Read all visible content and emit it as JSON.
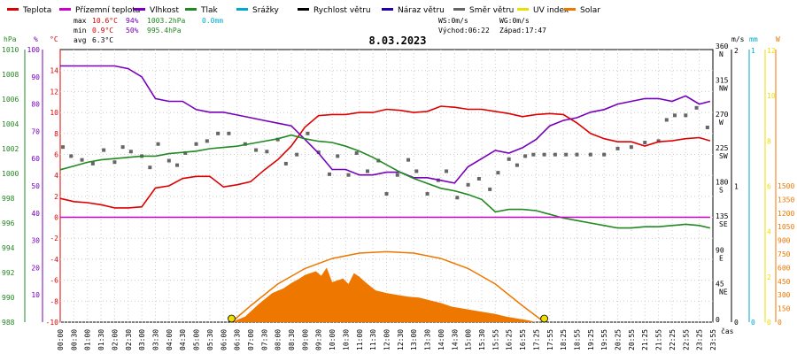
{
  "legend": [
    {
      "label": "Teplota",
      "color": "#dd0000"
    },
    {
      "label": "Přízemní teplota",
      "color": "#cc00cc"
    },
    {
      "label": "Vlhkost",
      "color": "#7700bb"
    },
    {
      "label": "Tlak",
      "color": "#228822"
    },
    {
      "label": "Srážky",
      "color": "#00aacc"
    },
    {
      "label": "Rychlost větru",
      "color": "#000000"
    },
    {
      "label": "Náraz větru",
      "color": "#2200aa"
    },
    {
      "label": "Směr větru",
      "color": "#666666"
    },
    {
      "label": "UV index",
      "color": "#eedd00"
    },
    {
      "label": "Solar",
      "color": "#ee7700"
    }
  ],
  "stats": {
    "max_label": "max",
    "max_temp": "10.6°C",
    "max_hum": "94%",
    "max_press": "1003.2hPa",
    "max_rain": "0.0mm",
    "min_label": "min",
    "min_temp": "0.9°C",
    "min_hum": "50%",
    "min_press": "995.4hPa",
    "avg_label": "avg",
    "avg_temp": "6.3°C"
  },
  "wind_info": {
    "ws": "WS:0m/s",
    "wg": "WG:0m/s",
    "sunrise": "Východ:06:22",
    "sunset": "Západ:17:47"
  },
  "date": "8.03.2023",
  "units": {
    "hpa": "hPa",
    "pct": "%",
    "degc": "°C",
    "ms": "m/s",
    "mm": "mm",
    "w": "W",
    "cas": "čas"
  },
  "chart_data": {
    "type": "line",
    "title": "8.03.2023",
    "xlabel": "čas",
    "x_ticks": [
      "00:00",
      "00:30",
      "01:00",
      "01:30",
      "02:00",
      "02:30",
      "03:00",
      "03:30",
      "04:00",
      "04:30",
      "05:00",
      "05:30",
      "06:00",
      "06:30",
      "07:00",
      "07:30",
      "08:00",
      "08:30",
      "09:00",
      "09:30",
      "10:00",
      "10:30",
      "11:00",
      "11:30",
      "12:00",
      "12:30",
      "13:00",
      "13:30",
      "14:00",
      "14:30",
      "15:00",
      "15:30",
      "15:55",
      "16:25",
      "16:55",
      "17:25",
      "17:55",
      "18:25",
      "18:55",
      "19:25",
      "19:55",
      "20:25",
      "20:55",
      "21:25",
      "21:55",
      "22:25",
      "22:55",
      "23:25",
      "23:55"
    ],
    "axes": {
      "pressure_hpa": {
        "min": 988,
        "max": 1010,
        "ticks": [
          988,
          990,
          992,
          994,
          996,
          998,
          1000,
          1002,
          1004,
          1006,
          1008,
          1010
        ]
      },
      "humidity_pct": {
        "min": 0,
        "max": 100,
        "ticks": [
          10,
          20,
          30,
          40,
          50,
          60,
          70,
          80,
          90,
          100
        ]
      },
      "temperature_c": {
        "min": -10,
        "max": 16,
        "ticks": [
          -10,
          -8,
          -6,
          -4,
          -2,
          0,
          2,
          4,
          6,
          8,
          10,
          12,
          14
        ]
      },
      "wind_ms": {
        "min": 0,
        "max": 2,
        "ticks": [
          0,
          1,
          2
        ]
      },
      "wind_dir": {
        "ticks": [
          {
            "v": 360,
            "l": "N"
          },
          {
            "v": 315,
            "l": "NW"
          },
          {
            "v": 270,
            "l": "W"
          },
          {
            "v": 225,
            "l": "SW"
          },
          {
            "v": 180,
            "l": "S"
          },
          {
            "v": 135,
            "l": "SE"
          },
          {
            "v": 90,
            "l": "E"
          },
          {
            "v": 45,
            "l": "NE"
          },
          {
            "v": 0,
            "l": ""
          }
        ]
      },
      "rain_mm": {
        "ticks": [
          0,
          1
        ]
      },
      "uv": {
        "ticks": [
          0,
          2,
          4,
          6,
          8,
          10,
          12
        ]
      },
      "solar_w": {
        "ticks": [
          0,
          150,
          300,
          450,
          600,
          750,
          900,
          1050,
          1200,
          1350,
          1500
        ]
      }
    },
    "series": [
      {
        "name": "Teplota",
        "axis": "temperature_c",
        "color": "#dd0000",
        "x": [
          0,
          0.5,
          1,
          1.5,
          2,
          2.5,
          3,
          3.5,
          4,
          4.5,
          5,
          5.5,
          6,
          6.5,
          7,
          7.5,
          8,
          8.5,
          9,
          9.5,
          10,
          10.5,
          11,
          11.5,
          12,
          12.5,
          13,
          13.5,
          14,
          14.5,
          15,
          15.5,
          16,
          16.5,
          17,
          17.5,
          18,
          18.5,
          19,
          19.5,
          20,
          20.5,
          21,
          21.5,
          22,
          22.5,
          23,
          23.5,
          23.9
        ],
        "values": [
          1.8,
          1.5,
          1.4,
          1.2,
          0.9,
          0.9,
          1.0,
          2.8,
          3.0,
          3.7,
          3.9,
          3.9,
          2.9,
          3.1,
          3.4,
          4.5,
          5.5,
          6.8,
          8.6,
          9.7,
          9.8,
          9.8,
          10.0,
          10.0,
          10.3,
          10.2,
          10.0,
          10.1,
          10.6,
          10.5,
          10.3,
          10.3,
          10.1,
          9.9,
          9.6,
          9.8,
          9.9,
          9.8,
          9.0,
          8.0,
          7.5,
          7.2,
          7.2,
          6.8,
          7.2,
          7.3,
          7.5,
          7.6,
          7.3
        ]
      },
      {
        "name": "Vlhkost",
        "axis": "humidity_pct",
        "color": "#7700bb",
        "x": [
          0,
          0.5,
          1,
          1.5,
          2,
          2.5,
          3,
          3.5,
          4,
          4.5,
          5,
          5.5,
          6,
          6.5,
          7,
          7.5,
          8,
          8.5,
          9,
          9.5,
          10,
          10.5,
          11,
          11.5,
          12,
          12.5,
          13,
          13.5,
          14,
          14.5,
          15,
          15.5,
          16,
          16.5,
          17,
          17.5,
          18,
          18.5,
          19,
          19.5,
          20,
          20.5,
          21,
          21.5,
          22,
          22.5,
          23,
          23.5,
          23.9
        ],
        "values": [
          94,
          94,
          94,
          94,
          94,
          93,
          90,
          82,
          81,
          81,
          78,
          77,
          77,
          76,
          75,
          74,
          73,
          72,
          67,
          62,
          56,
          56,
          54,
          54,
          55,
          55,
          53,
          53,
          52,
          51,
          57,
          60,
          63,
          62,
          64,
          67,
          72,
          74,
          75,
          77,
          78,
          80,
          81,
          82,
          82,
          81,
          83,
          80,
          81
        ]
      },
      {
        "name": "Tlak",
        "axis": "pressure_hpa",
        "color": "#228822",
        "x": [
          0,
          0.5,
          1,
          1.5,
          2,
          2.5,
          3,
          3.5,
          4,
          4.5,
          5,
          5.5,
          6,
          6.5,
          7,
          7.5,
          8,
          8.5,
          9,
          9.5,
          10,
          10.5,
          11,
          11.5,
          12,
          12.5,
          13,
          13.5,
          14,
          14.5,
          15,
          15.5,
          16,
          16.5,
          17,
          17.5,
          18,
          18.5,
          19,
          19.5,
          20,
          20.5,
          21,
          21.5,
          22,
          22.5,
          23,
          23.5,
          23.9
        ],
        "values": [
          1000.3,
          1000.6,
          1000.9,
          1001.1,
          1001.2,
          1001.3,
          1001.4,
          1001.4,
          1001.6,
          1001.7,
          1001.8,
          1002.0,
          1002.1,
          1002.2,
          1002.4,
          1002.6,
          1002.8,
          1003.1,
          1002.8,
          1002.6,
          1002.5,
          1002.2,
          1001.8,
          1001.3,
          1000.7,
          1000.1,
          999.6,
          999.2,
          998.8,
          998.6,
          998.3,
          997.9,
          996.9,
          997.1,
          997.1,
          997.0,
          996.7,
          996.4,
          996.2,
          996.0,
          995.8,
          995.6,
          995.6,
          995.7,
          995.7,
          995.8,
          995.9,
          995.8,
          995.6
        ]
      },
      {
        "name": "Přízemní teplota",
        "axis": "temperature_c",
        "color": "#cc00cc",
        "x": [
          0,
          23.9
        ],
        "values": [
          0,
          0
        ]
      },
      {
        "name": "Směr větru",
        "axis": "wind_dir",
        "color": "#666666",
        "type": "scatter",
        "x": [
          0.1,
          0.4,
          0.8,
          1.2,
          1.6,
          2.0,
          2.3,
          2.6,
          3.0,
          3.3,
          3.6,
          4.0,
          4.3,
          4.6,
          5.0,
          5.4,
          5.8,
          6.2,
          6.8,
          7.2,
          7.6,
          8.0,
          8.3,
          8.7,
          9.1,
          9.5,
          9.9,
          10.2,
          10.6,
          10.9,
          11.3,
          11.7,
          12.0,
          12.4,
          12.8,
          13.1,
          13.5,
          13.9,
          14.2,
          14.6,
          15.0,
          15.4,
          15.8,
          16.1,
          16.5,
          16.8,
          17.1,
          17.4,
          17.8,
          18.2,
          18.6,
          19.0,
          19.5,
          20.0,
          20.5,
          21.0,
          21.5,
          22.0,
          22.3,
          22.6,
          23.0,
          23.4,
          23.8
        ],
        "values": [
          232,
          220,
          215,
          210,
          228,
          212,
          232,
          226,
          220,
          205,
          236,
          214,
          208,
          224,
          236,
          240,
          250,
          250,
          236,
          228,
          226,
          242,
          210,
          222,
          250,
          225,
          196,
          220,
          195,
          224,
          200,
          214,
          170,
          195,
          215,
          200,
          170,
          188,
          200,
          165,
          182,
          190,
          176,
          198,
          216,
          208,
          220,
          222,
          222,
          222,
          222,
          222,
          222,
          222,
          230,
          232,
          238,
          240,
          268,
          274,
          274,
          284,
          258
        ]
      },
      {
        "name": "Solar",
        "axis": "solar_w",
        "color": "#ee7700",
        "type": "area",
        "x": [
          6.3,
          6.8,
          7.3,
          7.8,
          8.2,
          8.5,
          8.8,
          9.0,
          9.2,
          9.4,
          9.6,
          9.8,
          10.0,
          10.2,
          10.4,
          10.6,
          10.8,
          11.0,
          11.3,
          11.6,
          12.0,
          12.4,
          12.8,
          13.2,
          13.6,
          14.0,
          14.4,
          14.8,
          15.2,
          15.6,
          16.0,
          16.4,
          16.8,
          17.2,
          17.5
        ],
        "values": [
          0,
          60,
          200,
          320,
          370,
          430,
          480,
          520,
          540,
          560,
          510,
          600,
          440,
          460,
          480,
          420,
          540,
          500,
          420,
          350,
          320,
          300,
          280,
          270,
          240,
          210,
          170,
          150,
          130,
          110,
          90,
          60,
          40,
          20,
          0
        ]
      },
      {
        "name": "Solar max",
        "axis": "solar_w",
        "color": "#ee7700",
        "type": "curve",
        "x": [
          6.3,
          7,
          8,
          9,
          10,
          11,
          12,
          13,
          14,
          15,
          16,
          17,
          17.8
        ],
        "values": [
          0,
          180,
          420,
          590,
          700,
          760,
          775,
          760,
          700,
          590,
          420,
          180,
          0
        ]
      },
      {
        "name": "UV index",
        "axis": "uv",
        "color": "#eedd00",
        "type": "points",
        "x": [
          6.3,
          17.8
        ],
        "values": [
          0,
          0
        ]
      }
    ]
  }
}
